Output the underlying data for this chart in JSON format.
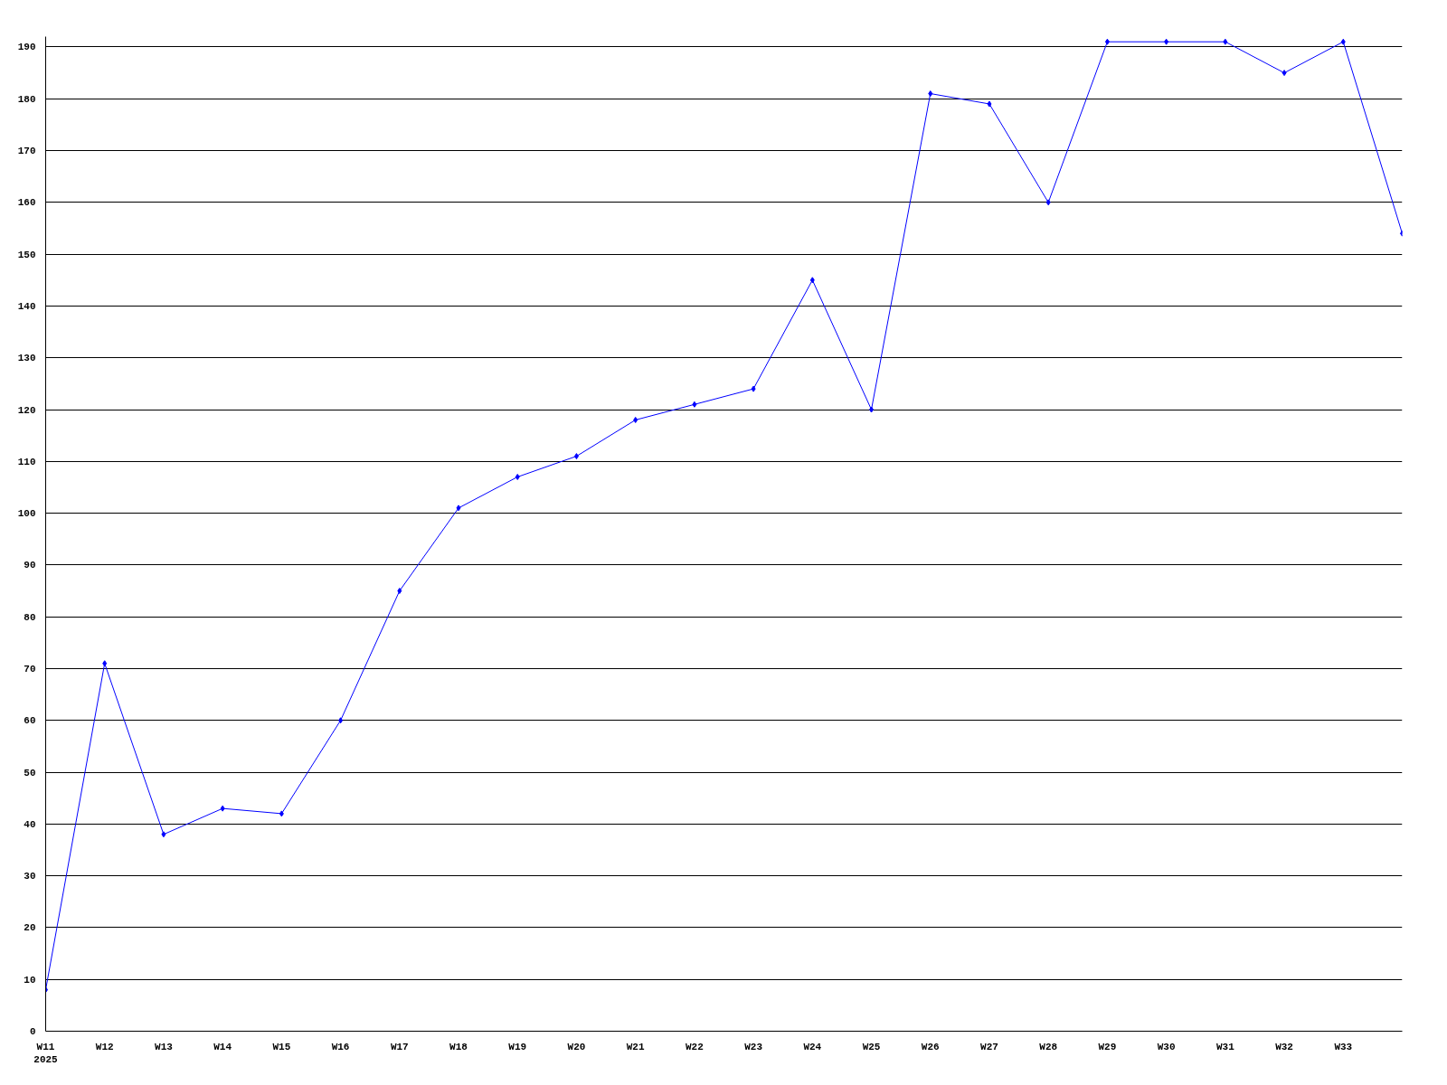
{
  "chart_data": {
    "type": "line",
    "categories": [
      "W11\n2025",
      "W12",
      "W13",
      "W14",
      "W15",
      "W16",
      "W17",
      "W18",
      "W19",
      "W20",
      "W21",
      "W22",
      "W23",
      "W24",
      "W25",
      "W26",
      "W27",
      "W28",
      "W29",
      "W30",
      "W31",
      "W32",
      "W33",
      null
    ],
    "series": [
      {
        "color": "#0000ff",
        "values": [
          8,
          71,
          38,
          43,
          42,
          60,
          85,
          101,
          107,
          111,
          118,
          121,
          124,
          145,
          120,
          181,
          179,
          160,
          191,
          191,
          191,
          185,
          191,
          154
        ]
      }
    ],
    "ylim": [
      0,
      192
    ],
    "yticks": [
      0,
      10,
      20,
      30,
      40,
      50,
      60,
      70,
      80,
      90,
      100,
      110,
      120,
      130,
      140,
      150,
      160,
      170,
      180,
      190
    ],
    "grid": "y",
    "marker": "diamond",
    "line_style": "solid"
  }
}
